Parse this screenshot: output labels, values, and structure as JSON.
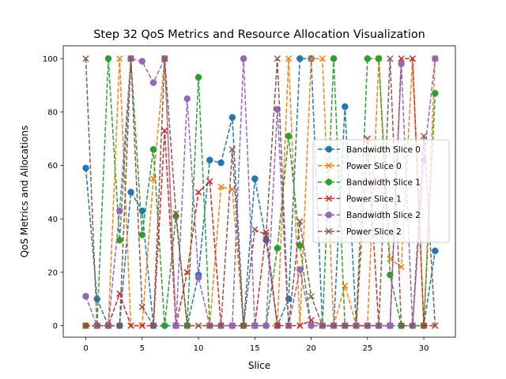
{
  "chart_data": {
    "type": "line",
    "title": "Step 32 QoS Metrics and Resource Allocation Visualization",
    "xlabel": "Slice",
    "ylabel": "QoS Metrics and Allocations",
    "xlim": [
      -2.0,
      32.8
    ],
    "ylim": [
      -4.3,
      104.8
    ],
    "xticks": [
      0,
      5,
      10,
      15,
      20,
      25,
      30
    ],
    "yticks": [
      0,
      20,
      40,
      60,
      80,
      100
    ],
    "grid": false,
    "legend_position": "center-right",
    "x": [
      0,
      1,
      2,
      3,
      4,
      5,
      6,
      7,
      8,
      9,
      10,
      11,
      12,
      13,
      14,
      15,
      16,
      17,
      18,
      19,
      20,
      21,
      22,
      23,
      24,
      25,
      26,
      27,
      28,
      29,
      30,
      31
    ],
    "series": [
      {
        "name": "Bandwidth Slice 0",
        "color": "#1f77b4",
        "marker": "circle",
        "values": [
          59,
          10,
          0,
          0,
          50,
          43,
          0,
          0,
          0,
          0,
          19,
          62,
          61,
          78,
          0,
          55,
          32,
          0,
          10,
          100,
          100,
          0,
          0,
          82,
          0,
          0,
          0,
          0,
          0,
          0,
          0,
          28
        ]
      },
      {
        "name": "Power Slice 0",
        "color": "#ff7f0e",
        "marker": "x",
        "values": [
          0,
          0,
          0,
          100,
          0,
          0,
          55,
          100,
          0,
          0,
          0,
          0,
          52,
          51,
          0,
          0,
          0,
          0,
          100,
          0,
          100,
          100,
          0,
          15,
          0,
          0,
          100,
          25,
          22,
          100,
          0,
          100
        ]
      },
      {
        "name": "Bandwidth Slice 1",
        "color": "#2ca02c",
        "marker": "circle",
        "values": [
          0,
          0,
          100,
          32,
          100,
          34,
          66,
          0,
          41,
          0,
          93,
          0,
          0,
          0,
          0,
          0,
          0,
          29,
          71,
          30,
          0,
          0,
          100,
          0,
          0,
          100,
          100,
          19,
          0,
          0,
          0,
          87
        ]
      },
      {
        "name": "Power Slice 1",
        "color": "#d62728",
        "marker": "x",
        "values": [
          0,
          0,
          0,
          12,
          0,
          0,
          0,
          73,
          0,
          20,
          50,
          54,
          0,
          0,
          0,
          0,
          35,
          0,
          0,
          0,
          2,
          0,
          0,
          0,
          0,
          70,
          0,
          0,
          100,
          100,
          0,
          0
        ]
      },
      {
        "name": "Bandwidth Slice 2",
        "color": "#9467bd",
        "marker": "circle",
        "values": [
          11,
          0,
          0,
          43,
          100,
          99,
          91,
          100,
          0,
          85,
          18,
          0,
          0,
          0,
          100,
          0,
          0,
          81,
          0,
          21,
          0,
          0,
          0,
          0,
          0,
          0,
          0,
          0,
          98,
          0,
          62,
          100
        ]
      },
      {
        "name": "Power Slice 2",
        "color": "#8c564b",
        "marker": "x",
        "values": [
          100,
          0,
          0,
          0,
          100,
          7,
          0,
          100,
          42,
          0,
          0,
          0,
          0,
          66,
          0,
          36,
          34,
          100,
          0,
          39,
          11,
          0,
          0,
          0,
          0,
          0,
          0,
          100,
          0,
          0,
          71,
          0
        ]
      }
    ]
  }
}
